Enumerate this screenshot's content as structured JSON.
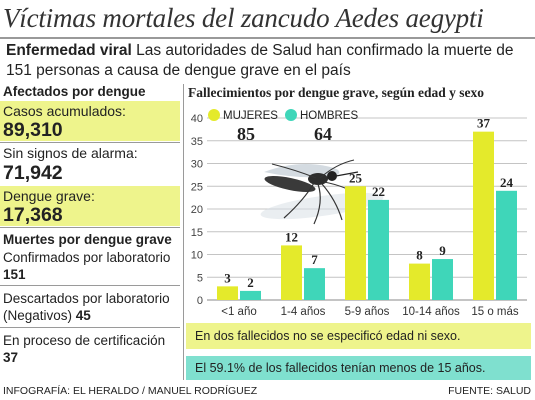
{
  "headline": "Víctimas mortales del zancudo Aedes aegypti",
  "intro": {
    "lead": "Enfermedad viral",
    "text": " Las autoridades de Salud han confirmado la muerte de 151 personas a causa de dengue grave en el país"
  },
  "left_panel": {
    "title": "Afectados por dengue",
    "stats": [
      {
        "label": "Casos acumulados:",
        "value": "89,310",
        "highlight": true
      },
      {
        "label": "Sin signos de alarma:",
        "value": "71,942",
        "highlight": false
      },
      {
        "label": "Dengue grave:",
        "value": "17,368",
        "highlight": true
      }
    ],
    "deaths_title": "Muertes por dengue grave",
    "confirmed_label": "Confirmados por laboratorio",
    "confirmed_value": "151",
    "discarded_label": "Descartados por laboratorio (Negativos)",
    "discarded_value": "45",
    "process_label": "En proceso de certificación",
    "process_value": "37"
  },
  "chart_data": {
    "type": "bar",
    "title": "Fallecimientos por dengue grave, según edad y sexo",
    "categories": [
      "<1 año",
      "1-4 años",
      "5-9 años",
      "10-14 años",
      "15 o más"
    ],
    "series": [
      {
        "name": "MUJERES",
        "values": [
          3,
          12,
          25,
          8,
          37
        ],
        "color": "#e4ea2b",
        "total": "85"
      },
      {
        "name": "HOMBRES",
        "values": [
          2,
          7,
          22,
          9,
          24
        ],
        "color": "#3fd6b9",
        "total": "64"
      }
    ],
    "ylim": [
      0,
      40
    ],
    "yticks": [
      0,
      5,
      10,
      15,
      20,
      25,
      30,
      35,
      40
    ],
    "legend": "top-left",
    "grid": true
  },
  "notes": [
    "En dos fallecidos no se especificó edad ni sexo.",
    "El 59.1% de los fallecidos tenían menos de 15 años."
  ],
  "footer": {
    "credit": "INFOGRAFÍA: EL HERALDO / MANUEL RODRÍGUEZ",
    "source": "FUENTE: SALUD"
  },
  "colors": {
    "yellow": "#e4ea2b",
    "teal": "#3fd6b9",
    "box_yellow": "#eef48c",
    "box_teal": "#7fe0cf"
  }
}
